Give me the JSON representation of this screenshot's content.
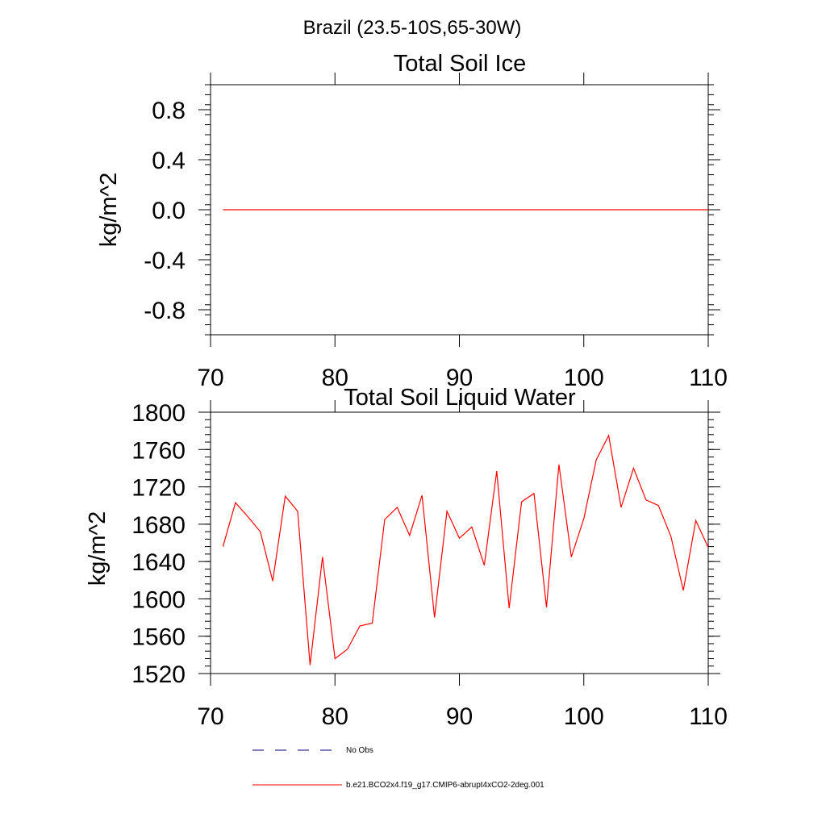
{
  "figure_title": "Brazil (23.5-10S,65-30W)",
  "colors": {
    "model_line": "#ff0000",
    "obs_line": "#000080",
    "axis": "#000000"
  },
  "legend": {
    "obs_label": "No Obs",
    "model_label": "b.e21.BCO2x4.f19_g17.CMIP6-abrupt4xCO2-2deg.001"
  },
  "chart_data": [
    {
      "type": "line",
      "title": "Total Soil Ice",
      "xlabel": "",
      "ylabel": "kg/m^2",
      "xlim": [
        70,
        110
      ],
      "ylim": [
        -1,
        1
      ],
      "xticks": [
        70,
        80,
        90,
        100,
        110
      ],
      "yticks": [
        -0.8,
        -0.4,
        0.0,
        0.4,
        0.8
      ],
      "ytick_labels": [
        "-0.8",
        "-0.4",
        "0.0",
        "0.4",
        "0.8"
      ],
      "xtick_labels": [
        "70",
        "80",
        "90",
        "100",
        "110"
      ],
      "grid": false,
      "series": [
        {
          "color": "#ff0000",
          "x": [
            71,
            72,
            73,
            74,
            75,
            76,
            77,
            78,
            79,
            80,
            81,
            82,
            83,
            84,
            85,
            86,
            87,
            88,
            89,
            90,
            91,
            92,
            93,
            94,
            95,
            96,
            97,
            98,
            99,
            100,
            101,
            102,
            103,
            104,
            105,
            106,
            107,
            108,
            109,
            110
          ],
          "y": [
            0,
            0,
            0,
            0,
            0,
            0,
            0,
            0,
            0,
            0,
            0,
            0,
            0,
            0,
            0,
            0,
            0,
            0,
            0,
            0,
            0,
            0,
            0,
            0,
            0,
            0,
            0,
            0,
            0,
            0,
            0,
            0,
            0,
            0,
            0,
            0,
            0,
            0,
            0,
            0
          ]
        }
      ]
    },
    {
      "type": "line",
      "title": "Total Soil Liquid Water",
      "xlabel": "",
      "ylabel": "kg/m^2",
      "xlim": [
        70,
        110
      ],
      "ylim": [
        1520,
        1800
      ],
      "xticks": [
        70,
        80,
        90,
        100,
        110
      ],
      "yticks": [
        1520,
        1560,
        1600,
        1640,
        1680,
        1720,
        1760,
        1800
      ],
      "ytick_labels": [
        "1520",
        "1560",
        "1600",
        "1640",
        "1680",
        "1720",
        "1760",
        "1800"
      ],
      "xtick_labels": [
        "70",
        "80",
        "90",
        "100",
        "110"
      ],
      "grid": false,
      "series": [
        {
          "color": "#ff0000",
          "x": [
            71,
            72,
            73,
            74,
            75,
            76,
            77,
            78,
            79,
            80,
            81,
            82,
            83,
            84,
            85,
            86,
            87,
            88,
            89,
            90,
            91,
            92,
            93,
            94,
            95,
            96,
            97,
            98,
            99,
            100,
            101,
            102,
            103,
            104,
            105,
            106,
            107,
            108,
            109,
            110
          ],
          "y": [
            1656,
            1703,
            1688,
            1672,
            1619,
            1710,
            1694,
            1529,
            1645,
            1536,
            1546,
            1571,
            1574,
            1685,
            1698,
            1668,
            1711,
            1580,
            1694,
            1665,
            1677,
            1636,
            1737,
            1590,
            1704,
            1713,
            1591,
            1744,
            1645,
            1686,
            1749,
            1775,
            1698,
            1740,
            1706,
            1700,
            1667,
            1609,
            1684,
            1655
          ]
        }
      ]
    }
  ]
}
